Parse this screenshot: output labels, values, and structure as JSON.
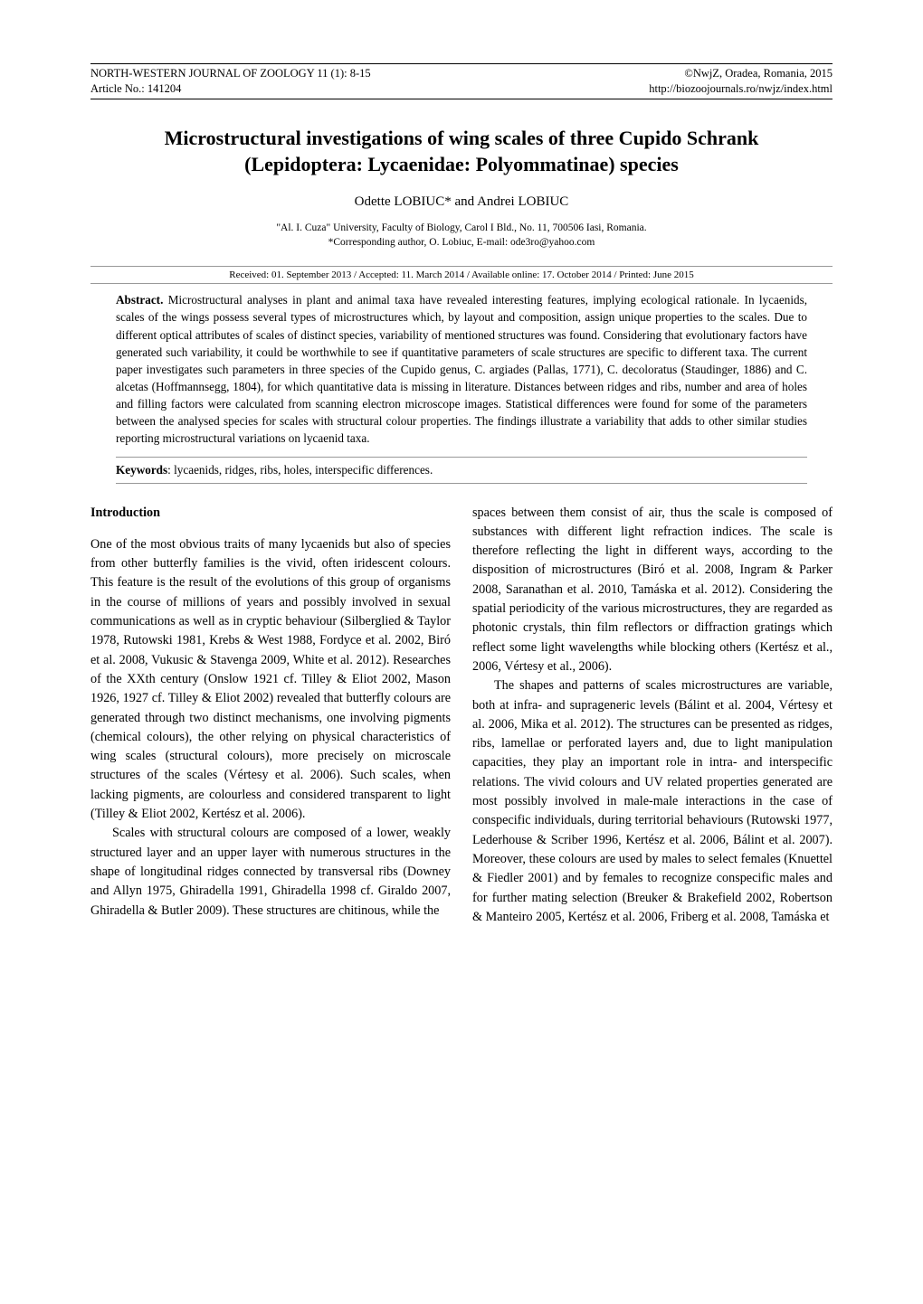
{
  "running_head": {
    "left_line1": "NORTH-WESTERN JOURNAL OF ZOOLOGY 11 (1): 8-15",
    "left_line2": "Article No.: 141204",
    "right_line1": "©NwjZ, Oradea, Romania, 2015",
    "right_line2": "http://biozoojournals.ro/nwjz/index.html"
  },
  "title_line1": "Microstructural investigations of wing scales of three Cupido Schrank",
  "title_line2": "(Lepidoptera: Lycaenidae: Polyommatinae) species",
  "authors": "Odette LOBIUC*  and  Andrei LOBIUC",
  "affiliation_line1": "\"Al. I. Cuza\" University, Faculty of Biology, Carol I Bld., No. 11, 700506 Iasi, Romania.",
  "affiliation_line2": "*Corresponding author, O. Lobiuc, E-mail: ode3ro@yahoo.com",
  "dates": "Received: 01. September 2013 / Accepted: 11. March 2014 / Available online: 17. October 2014 / Printed: June 2015",
  "abstract_label": "Abstract.",
  "abstract_text": "Microstructural analyses in plant and animal taxa have revealed interesting features, implying ecological rationale. In lycaenids, scales of the wings possess several types of microstructures which, by layout and composition, assign unique properties to the scales. Due to different optical attributes of scales of distinct species, variability of mentioned structures was found. Considering that evolutionary factors have generated such variability, it could be worthwhile to see if quantitative parameters of scale structures are specific to different taxa. The current paper investigates such parameters in three species of the Cupido genus, C. argiades (Pallas, 1771), C. decoloratus (Staudinger, 1886) and C. alcetas (Hoffmannsegg, 1804), for which quantitative data is missing in literature. Distances between ridges and ribs, number and area of holes and filling factors were calculated from scanning electron microscope images. Statistical differences were found for some of the parameters between the analysed species for scales with structural colour properties. The findings illustrate a variability that adds to other similar studies reporting microstructural variations on lycaenid taxa.",
  "keywords_label": "Keywords",
  "keywords_text": ": lycaenids, ridges, ribs, holes, interspecific differences.",
  "intro_heading": "Introduction",
  "left_col": {
    "p1": "One of the most obvious traits of many lycaenids but also of species from other butterfly families is the vivid, often iridescent colours. This feature is the result of the evolutions of this group of organisms in the course of millions of years and possibly involved in sexual communications as well as in cryptic behaviour (Silberglied & Taylor 1978, Rutowski 1981, Krebs & West 1988, Fordyce et al. 2002, Biró et al. 2008, Vukusic & Stavenga 2009, White et al. 2012). Researches of the XXth century (Onslow 1921 cf. Tilley & Eliot 2002, Mason 1926, 1927 cf. Tilley & Eliot 2002) revealed that butterfly colours are generated through two distinct mechanisms, one involving pigments (chemical colours), the other relying on physical characteristics of wing scales (structural colours), more precisely on microscale structures of the scales (Vértesy et al. 2006). Such scales, when lacking pigments, are colourless and considered transparent to light (Tilley & Eliot 2002, Kertész et al. 2006).",
    "p2": "Scales with structural colours are composed of a lower, weakly structured layer and an upper layer with numerous structures in the shape of longitudinal ridges connected by transversal ribs (Downey and Allyn 1975, Ghiradella 1991, Ghiradella 1998 cf. Giraldo 2007, Ghiradella & Butler 2009). These structures are chitinous, while the"
  },
  "right_col": {
    "p1": "spaces between them consist of air, thus the scale is composed of substances with different light refraction indices. The scale is therefore reflecting the light in different ways, according to the disposition of microstructures (Biró et al. 2008, Ingram & Parker 2008, Saranathan et al. 2010, Tamáska et al. 2012). Considering the spatial periodicity of the various microstructures, they are regarded as photonic crystals, thin film reflectors or diffraction gratings which reflect some light wavelengths while blocking others (Kertész et al., 2006, Vértesy et al., 2006).",
    "p2": "The shapes and patterns of scales microstructures are variable, both at infra- and suprageneric levels (Bálint et al. 2004, Vértesy et al. 2006, Mika et al. 2012). The structures can be presented as ridges, ribs, lamellae or perforated layers and, due to light manipulation capacities, they play an important role in intra- and interspecific relations. The vivid colours and UV related properties generated are most possibly involved in male-male interactions in the case of conspecific individuals, during territorial behaviours (Rutowski 1977, Lederhouse & Scriber 1996, Kertész et al. 2006, Bálint et al. 2007). Moreover, these colours are used by males to select females (Knuettel & Fiedler 2001) and by females to recognize conspecific males and for further mating selection (Breuker & Brakefield 2002, Robertson & Manteiro 2005, Kertész et al. 2006, Friberg et al. 2008, Tamáska et"
  }
}
